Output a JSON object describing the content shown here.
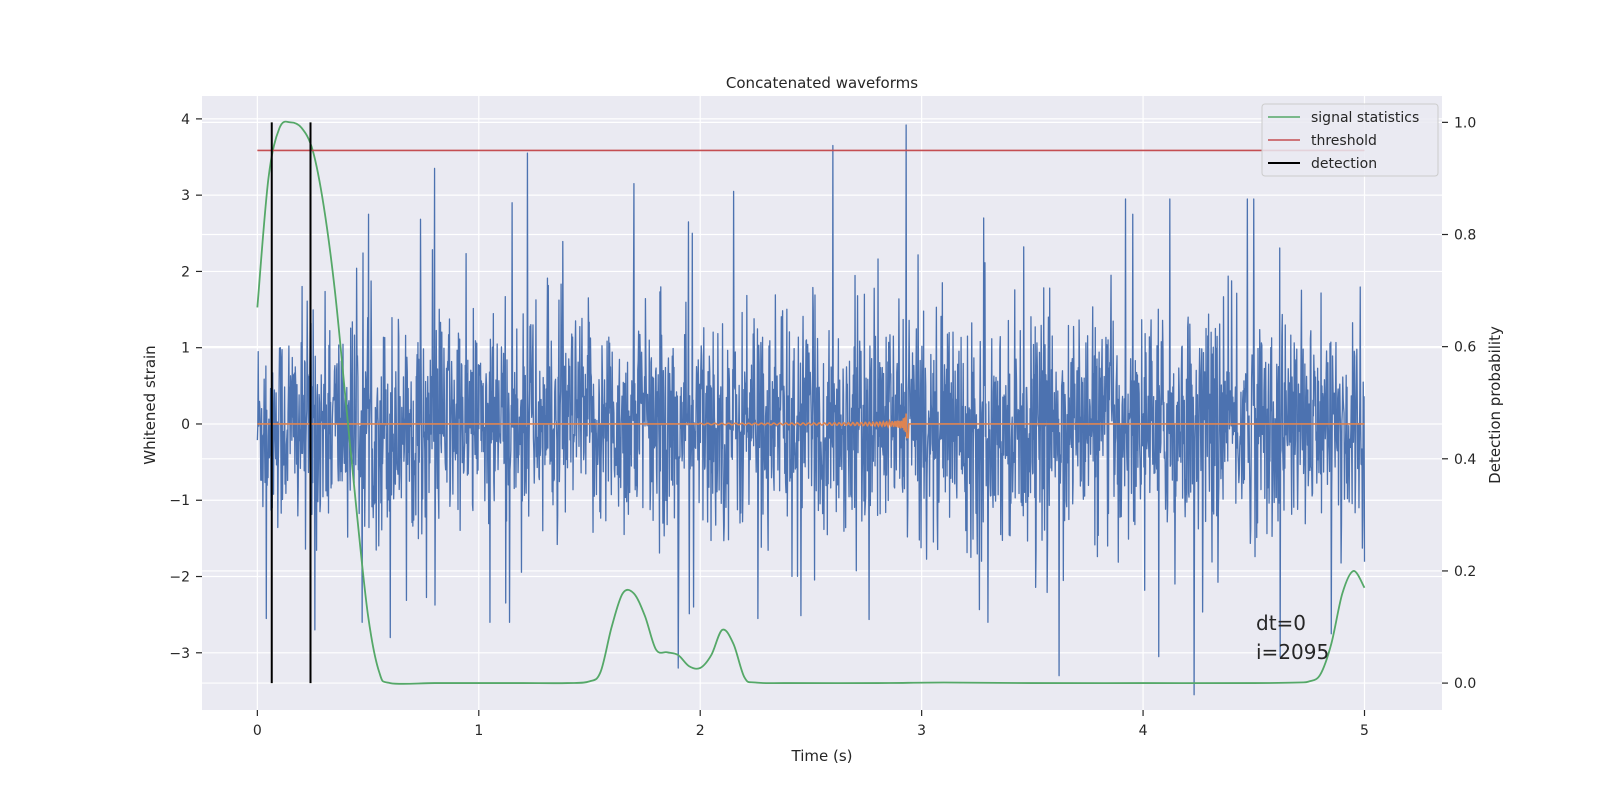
{
  "chart_data": {
    "type": "line",
    "title": "Concatenated waveforms",
    "xlabel": "Time (s)",
    "ylabel": "Whitened strain",
    "ylabel_right": "Detection probability",
    "xlim": [
      -0.25,
      5.35
    ],
    "ylim": [
      -3.75,
      4.3
    ],
    "ylim_right": [
      -0.048,
      1.047
    ],
    "x_ticks": [
      0,
      1,
      2,
      3,
      4,
      5
    ],
    "y_ticks": [
      -3,
      -2,
      -1,
      0,
      1,
      2,
      3,
      4
    ],
    "y_ticks_right": [
      0.0,
      0.2,
      0.4,
      0.6,
      0.8,
      1.0
    ],
    "x_tick_labels": [
      "0",
      "1",
      "2",
      "3",
      "4",
      "5"
    ],
    "y_tick_labels": [
      "−3",
      "−2",
      "−1",
      "0",
      "1",
      "2",
      "3",
      "4"
    ],
    "y_tick_labels_right": [
      "0.0",
      "0.2",
      "0.4",
      "0.6",
      "0.8",
      "1.0"
    ],
    "grid": true,
    "legend_position": "upper right",
    "series": [
      {
        "name": "signal statistics",
        "axis": "right",
        "color": "#55a868",
        "x": [
          0,
          0.05,
          0.1,
          0.15,
          0.2,
          0.25,
          0.3,
          0.35,
          0.4,
          0.45,
          0.5,
          0.55,
          0.6,
          0.8,
          1.0,
          1.2,
          1.4,
          1.5,
          1.55,
          1.6,
          1.65,
          1.7,
          1.75,
          1.8,
          1.85,
          1.9,
          1.95,
          2.0,
          2.05,
          2.1,
          2.15,
          2.2,
          2.25,
          2.4,
          2.8,
          3.1,
          3.5,
          4.0,
          4.5,
          4.7,
          4.75,
          4.8,
          4.85,
          4.9,
          4.95,
          5.0
        ],
        "y": [
          0.67,
          0.9,
          0.99,
          1.0,
          0.99,
          0.95,
          0.85,
          0.7,
          0.5,
          0.3,
          0.12,
          0.02,
          0.0,
          0.0,
          0.0,
          0.0,
          0.0,
          0.003,
          0.02,
          0.1,
          0.16,
          0.16,
          0.12,
          0.06,
          0.055,
          0.05,
          0.03,
          0.027,
          0.05,
          0.095,
          0.07,
          0.01,
          0.001,
          0.0,
          0.0,
          0.001,
          0.0,
          0.0,
          0.0,
          0.001,
          0.003,
          0.015,
          0.07,
          0.16,
          0.2,
          0.17
        ]
      },
      {
        "name": "threshold",
        "axis": "right",
        "color": "#c44e52",
        "x": [
          0,
          5
        ],
        "y": [
          0.95,
          0.95
        ]
      },
      {
        "name": "detection",
        "axis": "right",
        "color": "#000000",
        "vlines_x": [
          0.065,
          0.24
        ],
        "y_range": [
          0.0,
          1.0
        ]
      },
      {
        "name": "",
        "axis": "left",
        "color": "#4c72b0",
        "kind": "noise",
        "x_range": [
          0,
          5
        ],
        "typical_amplitude": 1.1,
        "spike_events": [
          {
            "x": 0.8,
            "y": 3.35
          },
          {
            "x": 1.22,
            "y": 3.55
          },
          {
            "x": 1.05,
            "y": 3.0
          },
          {
            "x": 1.7,
            "y": 3.15
          },
          {
            "x": 2.6,
            "y": 3.65
          },
          {
            "x": 2.93,
            "y": 3.92
          },
          {
            "x": 2.15,
            "y": 3.05
          },
          {
            "x": 3.28,
            "y": 2.7
          },
          {
            "x": 3.92,
            "y": 2.95
          },
          {
            "x": 4.12,
            "y": 2.95
          },
          {
            "x": 4.5,
            "y": 2.95
          },
          {
            "x": 4.47,
            "y": 2.95
          },
          {
            "x": 1.15,
            "y": 2.9
          },
          {
            "x": 0.04,
            "y": -2.55
          },
          {
            "x": 0.26,
            "y": -2.7
          },
          {
            "x": 0.6,
            "y": -2.8
          },
          {
            "x": 1.05,
            "y": -2.6
          },
          {
            "x": 1.9,
            "y": -3.2
          },
          {
            "x": 1.97,
            "y": -2.4
          },
          {
            "x": 2.26,
            "y": -2.55
          },
          {
            "x": 3.62,
            "y": -3.3
          },
          {
            "x": 4.07,
            "y": -3.05
          },
          {
            "x": 4.23,
            "y": -3.55
          },
          {
            "x": 4.62,
            "y": -3.05
          },
          {
            "x": 4.85,
            "y": -2.75
          },
          {
            "x": 3.3,
            "y": -2.6
          }
        ]
      },
      {
        "name": "",
        "axis": "left",
        "color": "#dd8452",
        "kind": "chirp",
        "x_range": [
          0,
          5
        ],
        "chirp_start": 1.99,
        "chirp_peak": 2.93,
        "peak_amplitude": 0.7,
        "peak_amplitude_low": -0.72
      }
    ],
    "annotations": [
      "dt=0",
      "i=2095"
    ]
  },
  "legend": [
    "signal statistics",
    "threshold",
    "detection"
  ]
}
